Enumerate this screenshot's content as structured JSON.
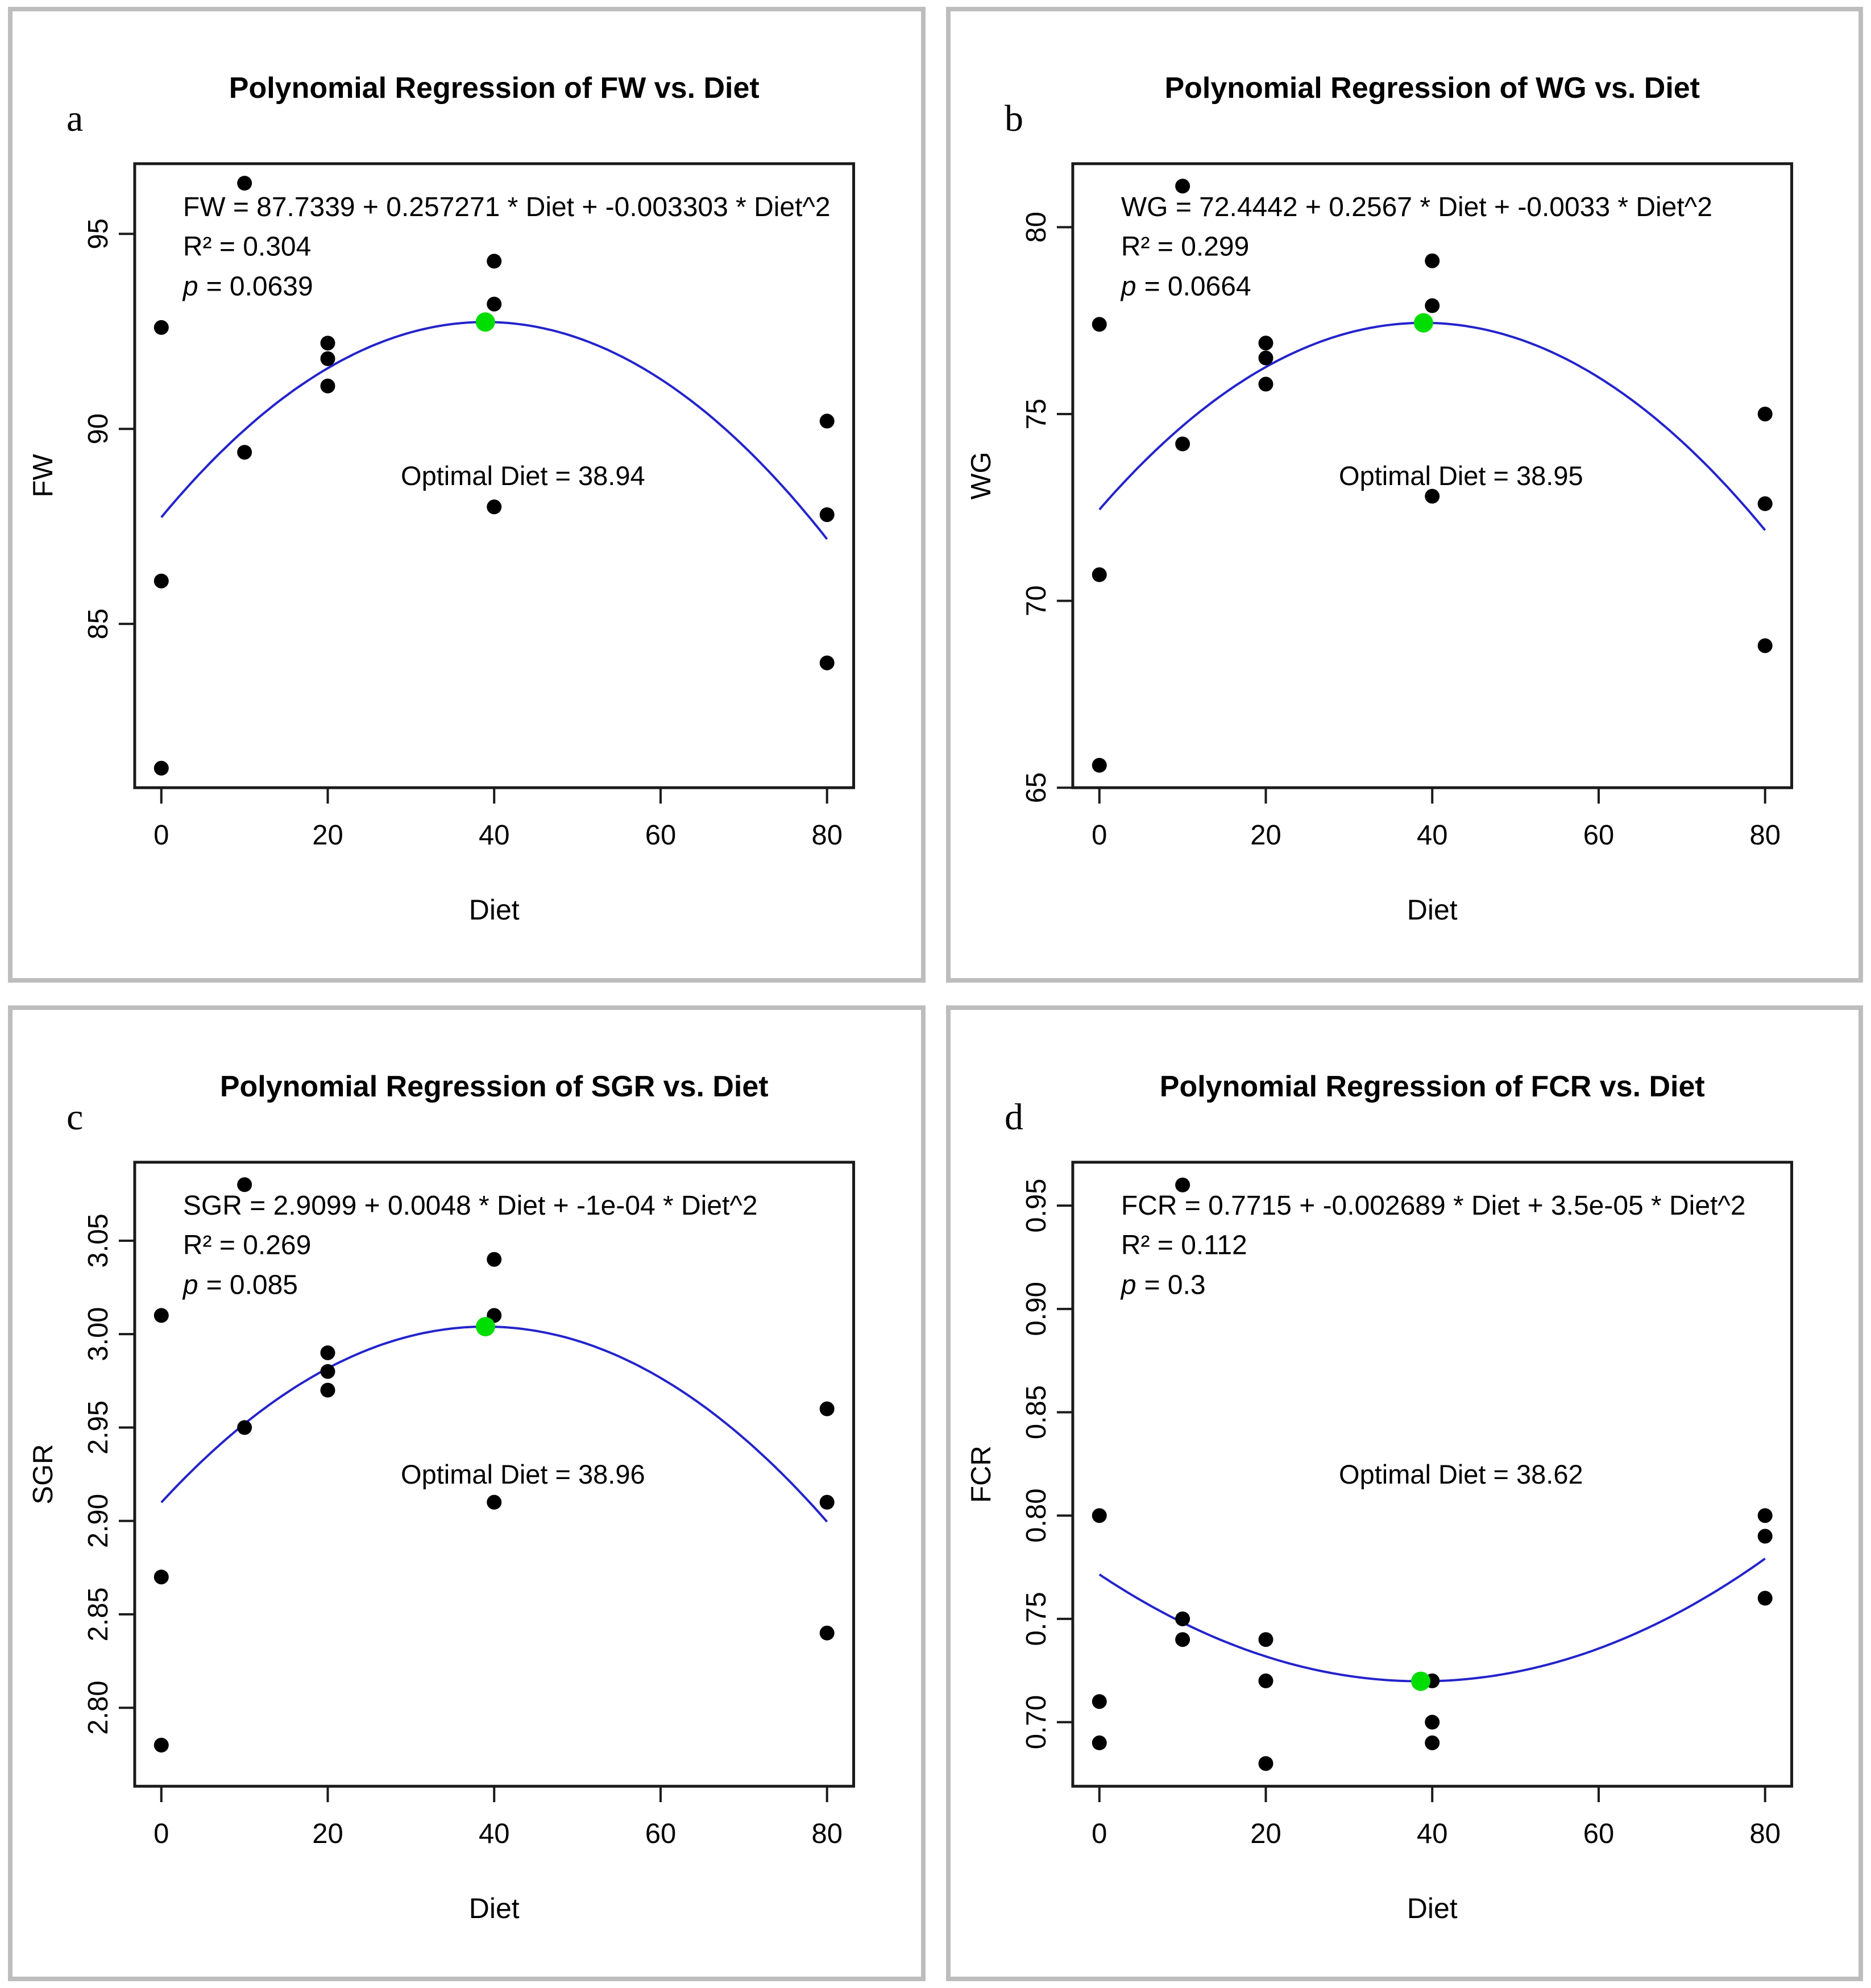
{
  "figure": {
    "background": "#ffffff",
    "panel_border_color": "#bdbdbd",
    "frame_color": "#1a1a1a",
    "curve_color": "#2323cc",
    "point_color": "#000000",
    "optimal_point_color": "#00dd00",
    "text_color": "#000000"
  },
  "chart_data": [
    {
      "type": "scatter",
      "letter": "a",
      "title": "Polynomial Regression of FW vs. Diet",
      "equation": "FW = 87.7339 + 0.257271 * Diet + -0.003303 * Diet^2",
      "r2_text": "R² = 0.304",
      "p_label": "p",
      "p_text": "= 0.0639",
      "optimal_label": "Optimal Diet = 38.94",
      "xlabel": "Diet",
      "ylabel": "FW",
      "xtick_labels": [
        "0",
        "20",
        "40",
        "60",
        "80"
      ],
      "xtick_values": [
        0,
        20,
        40,
        60,
        80
      ],
      "ytick_labels": [
        "85",
        "90",
        "95"
      ],
      "ytick_values": [
        85,
        90,
        95
      ],
      "xlim": [
        -3.2,
        83.2
      ],
      "ylim": [
        80.8,
        96.8
      ],
      "grid": false,
      "curve": {
        "shape": "quadratic",
        "intercept": 87.7339,
        "vertex_x": 38.94,
        "vertex_y": 92.74,
        "x_range": [
          0,
          80
        ]
      },
      "optimal_point": [
        38.94,
        92.74
      ],
      "points": [
        [
          0,
          92.6
        ],
        [
          0,
          86.1
        ],
        [
          0,
          81.3
        ],
        [
          10,
          96.3
        ],
        [
          10,
          89.4
        ],
        [
          20,
          92.2
        ],
        [
          20,
          91.8
        ],
        [
          20,
          91.1
        ],
        [
          40,
          94.3
        ],
        [
          40,
          93.2
        ],
        [
          40,
          88.0
        ],
        [
          80,
          90.2
        ],
        [
          80,
          87.8
        ],
        [
          80,
          84.0
        ]
      ]
    },
    {
      "type": "scatter",
      "letter": "b",
      "title": "Polynomial Regression of WG vs. Diet",
      "equation": "WG = 72.4442 + 0.2567 * Diet + -0.0033 * Diet^2",
      "r2_text": "R² = 0.299",
      "p_label": "p",
      "p_text": "= 0.0664",
      "optimal_label": "Optimal Diet = 38.95",
      "xlabel": "Diet",
      "ylabel": "WG",
      "xtick_labels": [
        "0",
        "20",
        "40",
        "60",
        "80"
      ],
      "xtick_values": [
        0,
        20,
        40,
        60,
        80
      ],
      "ytick_labels": [
        "65",
        "70",
        "75",
        "80"
      ],
      "ytick_values": [
        65,
        70,
        75,
        80
      ],
      "xlim": [
        -3.2,
        83.2
      ],
      "ylim": [
        65.0,
        81.7
      ],
      "grid": false,
      "curve": {
        "shape": "quadratic",
        "intercept": 72.4442,
        "vertex_x": 38.95,
        "vertex_y": 77.44,
        "x_range": [
          0,
          80
        ]
      },
      "optimal_point": [
        38.95,
        77.44
      ],
      "points": [
        [
          0,
          77.4
        ],
        [
          0,
          70.7
        ],
        [
          0,
          65.6
        ],
        [
          10,
          81.1
        ],
        [
          10,
          74.2
        ],
        [
          20,
          76.9
        ],
        [
          20,
          76.5
        ],
        [
          20,
          75.8
        ],
        [
          40,
          79.1
        ],
        [
          40,
          77.9
        ],
        [
          40,
          72.8
        ],
        [
          80,
          75.0
        ],
        [
          80,
          72.6
        ],
        [
          80,
          68.8
        ]
      ]
    },
    {
      "type": "scatter",
      "letter": "c",
      "title": "Polynomial Regression of SGR vs. Diet",
      "equation": "SGR = 2.9099 + 0.0048 * Diet + -1e-04 * Diet^2",
      "r2_text": "R² = 0.269",
      "p_label": "p",
      "p_text": "= 0.085",
      "optimal_label": "Optimal Diet = 38.96",
      "xlabel": "Diet",
      "ylabel": "SGR",
      "xtick_labels": [
        "0",
        "20",
        "40",
        "60",
        "80"
      ],
      "xtick_values": [
        0,
        20,
        40,
        60,
        80
      ],
      "ytick_labels": [
        "2.80",
        "2.85",
        "2.90",
        "2.95",
        "3.00",
        "3.05"
      ],
      "ytick_values": [
        2.8,
        2.85,
        2.9,
        2.95,
        3.0,
        3.05
      ],
      "xlim": [
        -3.2,
        83.2
      ],
      "ylim": [
        2.758,
        3.092
      ],
      "grid": false,
      "curve": {
        "shape": "quadratic",
        "intercept": 2.9099,
        "vertex_x": 38.96,
        "vertex_y": 3.004,
        "x_range": [
          0,
          80
        ]
      },
      "optimal_point": [
        38.96,
        3.004
      ],
      "points": [
        [
          0,
          3.01
        ],
        [
          0,
          2.87
        ],
        [
          0,
          2.78
        ],
        [
          10,
          3.08
        ],
        [
          10,
          2.95
        ],
        [
          20,
          2.99
        ],
        [
          20,
          2.98
        ],
        [
          20,
          2.97
        ],
        [
          40,
          3.04
        ],
        [
          40,
          3.01
        ],
        [
          40,
          2.91
        ],
        [
          80,
          2.96
        ],
        [
          80,
          2.91
        ],
        [
          80,
          2.84
        ]
      ]
    },
    {
      "type": "scatter",
      "letter": "d",
      "title": "Polynomial Regression of FCR vs. Diet",
      "equation": "FCR = 0.7715 + -0.002689 * Diet + 3.5e-05 * Diet^2",
      "r2_text": "R² = 0.112",
      "p_label": "p",
      "p_text": "= 0.3",
      "optimal_label": "Optimal Diet = 38.62",
      "xlabel": "Diet",
      "ylabel": "FCR",
      "xtick_labels": [
        "0",
        "20",
        "40",
        "60",
        "80"
      ],
      "xtick_values": [
        0,
        20,
        40,
        60,
        80
      ],
      "ytick_labels": [
        "0.70",
        "0.75",
        "0.80",
        "0.85",
        "0.90",
        "0.95"
      ],
      "ytick_values": [
        0.7,
        0.75,
        0.8,
        0.85,
        0.9,
        0.95
      ],
      "xlim": [
        -3.2,
        83.2
      ],
      "ylim": [
        0.669,
        0.971
      ],
      "grid": false,
      "curve": {
        "shape": "quadratic",
        "intercept": 0.7715,
        "vertex_x": 38.62,
        "vertex_y": 0.7198,
        "x_range": [
          0,
          80
        ]
      },
      "optimal_point": [
        38.62,
        0.7198
      ],
      "points": [
        [
          0,
          0.8
        ],
        [
          0,
          0.71
        ],
        [
          0,
          0.69
        ],
        [
          10,
          0.96
        ],
        [
          10,
          0.75
        ],
        [
          10,
          0.74
        ],
        [
          20,
          0.74
        ],
        [
          20,
          0.72
        ],
        [
          20,
          0.68
        ],
        [
          40,
          0.72
        ],
        [
          40,
          0.7
        ],
        [
          40,
          0.69
        ],
        [
          80,
          0.8
        ],
        [
          80,
          0.79
        ],
        [
          80,
          0.76
        ]
      ]
    }
  ]
}
